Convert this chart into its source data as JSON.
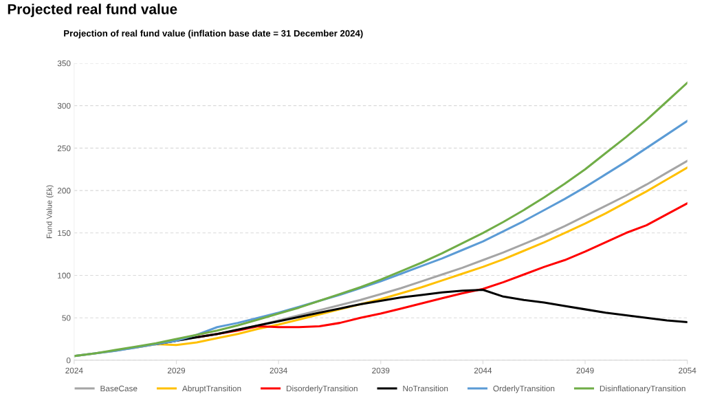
{
  "chart_data": {
    "type": "line",
    "title": "Projected real fund value",
    "subtitle": "Projection of real fund value (inflation base date = 31 December 2024)",
    "ylabel": "Fund Value (£k)",
    "x": [
      2024,
      2025,
      2026,
      2027,
      2028,
      2029,
      2030,
      2031,
      2032,
      2033,
      2034,
      2035,
      2036,
      2037,
      2038,
      2039,
      2040,
      2041,
      2042,
      2043,
      2044,
      2045,
      2046,
      2047,
      2048,
      2049,
      2050,
      2051,
      2052,
      2053,
      2054
    ],
    "series": [
      {
        "name": "BaseCase",
        "color": "#a5a5a5",
        "values": [
          5,
          8,
          11,
          15,
          19,
          23,
          27,
          31,
          36,
          41,
          47,
          53,
          59,
          65,
          71,
          78,
          85,
          93,
          101,
          109,
          118,
          127,
          137,
          147,
          158,
          170,
          182,
          194,
          207,
          221,
          235
        ]
      },
      {
        "name": "AbruptTransition",
        "color": "#ffc000",
        "values": [
          null,
          null,
          null,
          15,
          19,
          18,
          21,
          26,
          31,
          37,
          42,
          48,
          54,
          60,
          66,
          72,
          79,
          86,
          94,
          102,
          110,
          119,
          129,
          139,
          150,
          161,
          173,
          186,
          199,
          213,
          227
        ]
      },
      {
        "name": "DisorderlyTransition",
        "color": "#ff0000",
        "values": [
          null,
          null,
          null,
          null,
          null,
          null,
          27,
          31,
          35,
          40,
          39,
          39,
          40,
          44,
          50,
          55,
          61,
          67,
          73,
          79,
          84,
          92,
          101,
          110,
          118,
          128,
          139,
          150,
          159,
          172,
          185
        ]
      },
      {
        "name": "NoTransition",
        "color": "#000000",
        "values": [
          null,
          null,
          null,
          null,
          19,
          23,
          27,
          31,
          36,
          41,
          46,
          51,
          56,
          61,
          66,
          70,
          74,
          77,
          80,
          82,
          83,
          75,
          71,
          68,
          64,
          60,
          56,
          53,
          50,
          47,
          45
        ]
      },
      {
        "name": "OrderlyTransition",
        "color": "#5b9bd5",
        "values": [
          5,
          8,
          11,
          15,
          19,
          23,
          30,
          39,
          44,
          50,
          56,
          63,
          70,
          77,
          85,
          93,
          102,
          111,
          120,
          130,
          140,
          152,
          164,
          177,
          190,
          204,
          219,
          234,
          250,
          266,
          282
        ]
      },
      {
        "name": "DisinflationaryTransition",
        "color": "#70ad47",
        "values": [
          5,
          8,
          12,
          16,
          20,
          25,
          30,
          35,
          41,
          48,
          55,
          62,
          70,
          78,
          86,
          95,
          105,
          115,
          126,
          138,
          150,
          163,
          177,
          192,
          208,
          225,
          244,
          263,
          283,
          305,
          327
        ]
      }
    ],
    "xlim": [
      2024,
      2054
    ],
    "xticks": [
      2024,
      2029,
      2034,
      2039,
      2044,
      2049,
      2054
    ],
    "ylim": [
      0,
      350
    ],
    "yticks": [
      0,
      50,
      100,
      150,
      200,
      250,
      300,
      350
    ],
    "grid": "y",
    "legend": "bottom",
    "marker": "none",
    "line_style": "solid"
  }
}
